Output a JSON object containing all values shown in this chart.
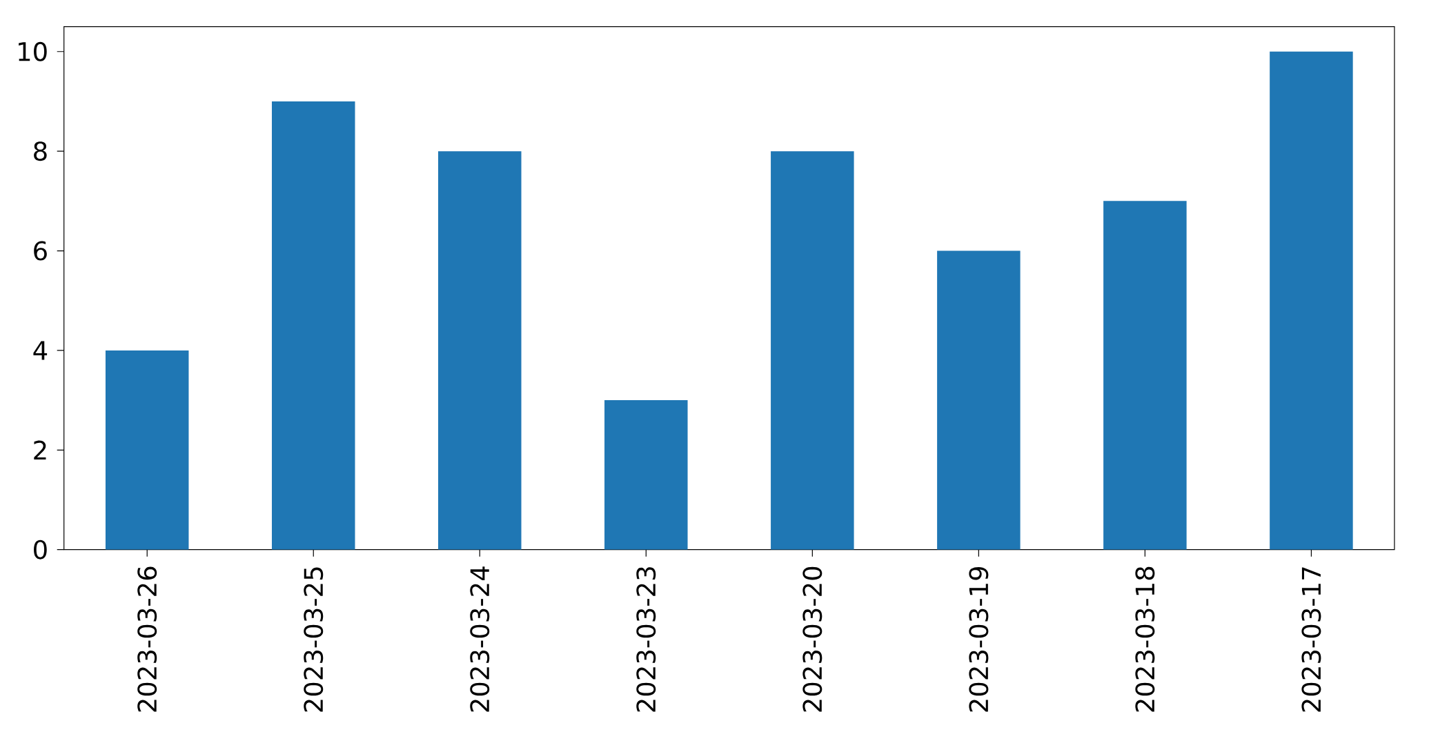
{
  "chart_data": {
    "type": "bar",
    "categories": [
      "2023-03-26",
      "2023-03-25",
      "2023-03-24",
      "2023-03-23",
      "2023-03-20",
      "2023-03-19",
      "2023-03-18",
      "2023-03-17"
    ],
    "values": [
      4,
      9,
      8,
      3,
      8,
      6,
      7,
      10
    ],
    "color": "#1f77b4",
    "ylim": [
      0,
      10.5
    ],
    "yticks": [
      0,
      2,
      4,
      6,
      8,
      10
    ]
  }
}
